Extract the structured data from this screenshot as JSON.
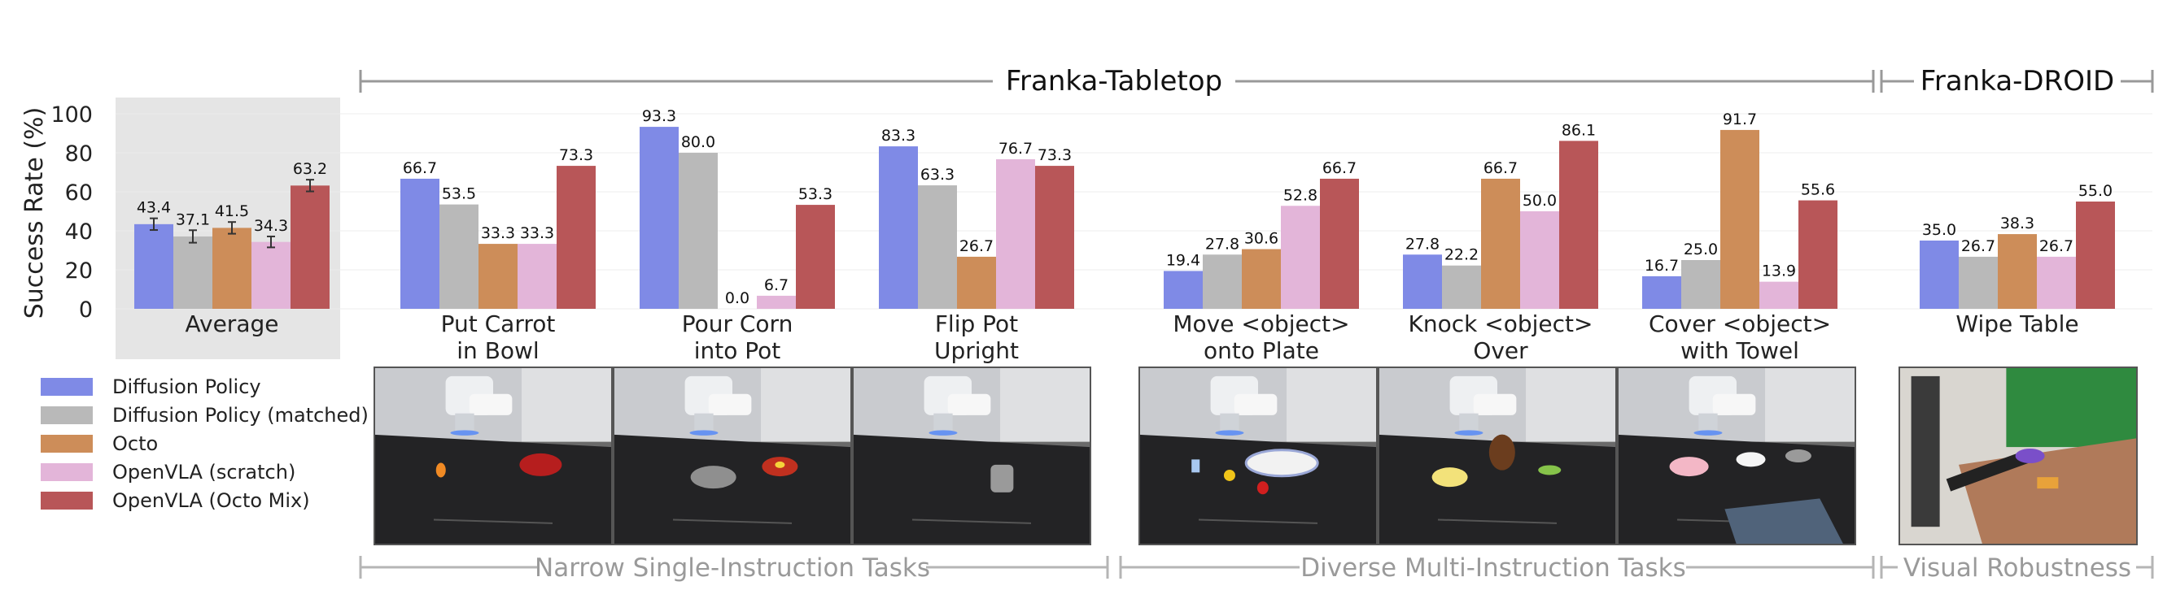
{
  "chart_data": {
    "type": "bar",
    "ylabel": "Success Rate (%)",
    "ylim": [
      0,
      100
    ],
    "yticks": [
      0,
      20,
      40,
      60,
      80,
      100
    ],
    "groups_top": [
      {
        "label": "Franka-Tabletop"
      },
      {
        "label": "Franka-DROID"
      }
    ],
    "groups_bottom": [
      {
        "label": "Narrow Single-Instruction Tasks"
      },
      {
        "label": "Diverse Multi-Instruction Tasks"
      },
      {
        "label": "Visual Robustness"
      }
    ],
    "series": [
      {
        "name": "Diffusion Policy",
        "color": "#7f8ae6"
      },
      {
        "name": "Diffusion Policy (matched)",
        "color": "#b9b9b9"
      },
      {
        "name": "Octo",
        "color": "#cd8d59"
      },
      {
        "name": "OpenVLA (scratch)",
        "color": "#e3b5d9"
      },
      {
        "name": "OpenVLA (Octo Mix)",
        "color": "#b85658"
      }
    ],
    "categories": [
      {
        "label": [
          "Average"
        ],
        "values": [
          43.4,
          37.1,
          41.5,
          34.3,
          63.2
        ],
        "errors": [
          3.0,
          3.2,
          3.0,
          2.8,
          3.0
        ],
        "shaded": true
      },
      {
        "label": [
          "Put Carrot",
          "in Bowl"
        ],
        "values": [
          66.7,
          53.5,
          33.3,
          33.3,
          73.3
        ]
      },
      {
        "label": [
          "Pour Corn",
          "into Pot"
        ],
        "values": [
          93.3,
          80.0,
          0.0,
          6.7,
          53.3
        ]
      },
      {
        "label": [
          "Flip Pot",
          "Upright"
        ],
        "values": [
          83.3,
          63.3,
          26.7,
          76.7,
          73.3
        ]
      },
      {
        "label": [
          "Move <object>",
          "onto Plate"
        ],
        "values": [
          19.4,
          27.8,
          30.6,
          52.8,
          66.7
        ]
      },
      {
        "label": [
          "Knock <object>",
          "Over"
        ],
        "values": [
          27.8,
          22.2,
          66.7,
          50.0,
          86.1
        ]
      },
      {
        "label": [
          "Cover <object>",
          "with Towel"
        ],
        "values": [
          16.7,
          25.0,
          91.7,
          13.9,
          55.6
        ]
      },
      {
        "label": [
          "Wipe Table"
        ],
        "values": [
          35.0,
          26.7,
          38.3,
          26.7,
          55.0
        ]
      }
    ],
    "value_labels": [
      [
        "43.4",
        "37.1",
        "41.5",
        "34.3",
        "63.2"
      ],
      [
        "66.7",
        "53.5",
        "33.3",
        "33.3",
        "73.3"
      ],
      [
        "93.3",
        "80.0",
        "0.0",
        "6.7",
        "53.3"
      ],
      [
        "83.3",
        "63.3",
        "26.7",
        "76.7",
        "73.3"
      ],
      [
        "19.4",
        "27.8",
        "30.6",
        "52.8",
        "66.7"
      ],
      [
        "27.8",
        "22.2",
        "66.7",
        "50.0",
        "86.1"
      ],
      [
        "16.7",
        "25.0",
        "91.7",
        "13.9",
        "55.6"
      ],
      [
        "35.0",
        "26.7",
        "38.3",
        "26.7",
        "55.0"
      ]
    ],
    "grid": true,
    "legend_position": "bottom-left"
  },
  "photos": [
    {
      "scene": "carrot-bowl"
    },
    {
      "scene": "corn-pot"
    },
    {
      "scene": "flip-pot"
    },
    {
      "scene": "object-plate"
    },
    {
      "scene": "knock-object"
    },
    {
      "scene": "cover-towel"
    },
    {
      "scene": "wipe-table"
    }
  ]
}
